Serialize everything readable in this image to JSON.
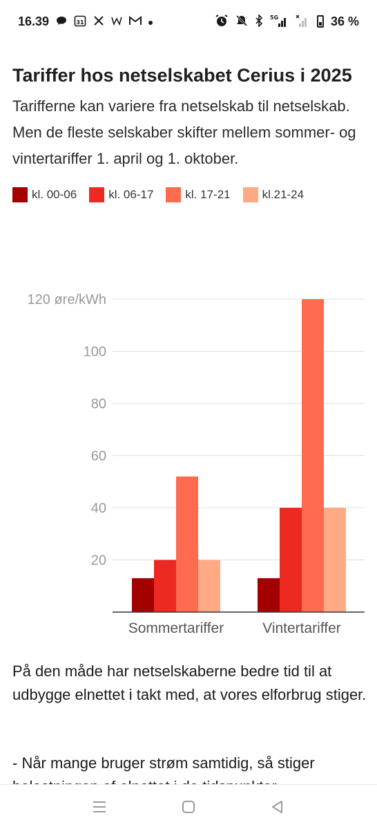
{
  "status_bar": {
    "time": "16.39",
    "left_icons": [
      "chat-bubble-icon",
      "calendar-31-icon",
      "x-logo-icon",
      "w-icon",
      "gmail-icon",
      "dot-icon"
    ],
    "right_icons": [
      "alarm-icon",
      "mute-icon",
      "bluetooth-icon",
      "5g-signal-icon",
      "signal-icon"
    ],
    "calendar_day": "31",
    "network": "5G",
    "battery": "36 %"
  },
  "article": {
    "title": "Tariffer hos netselskabet Cerius i 2025",
    "subtitle": "Tarifferne kan variere fra netselskab til netselskab. Men de fleste selskaber skifter mellem sommer- og vintertariffer 1. april og 1. oktober.",
    "paragraph1": "På den måde har netselskaberne bedre tid til at udbygge elnettet i takt med, at vores elforbrug stiger.",
    "paragraph2": "- Når mange bruger strøm samtidig, så stiger belastningen af elnettet i de tidspunkter"
  },
  "chart_data": {
    "type": "bar",
    "title": "Tariffer hos netselskabet Cerius i 2025",
    "subtitle": "Tarifferne kan variere fra netselskab til netselskab. Men de fleste selskaber skifter mellem sommer- og vintertariffer 1. april og 1. oktober.",
    "categories": [
      "Sommertariffer",
      "Vintertariffer"
    ],
    "series": [
      {
        "name": "kl. 00-06",
        "color": "#a30000",
        "values": [
          13,
          13
        ]
      },
      {
        "name": "kl. 06-17",
        "color": "#ec2a22",
        "values": [
          20,
          40
        ]
      },
      {
        "name": "kl. 17-21",
        "color": "#ff6b4f",
        "values": [
          52,
          120
        ]
      },
      {
        "name": "kl.21-24",
        "color": "#ffaa85",
        "values": [
          20,
          40
        ]
      }
    ],
    "yticks": [
      "20",
      "40",
      "60",
      "80",
      "100",
      "120 øre/kWh"
    ],
    "ytick_values": [
      20,
      40,
      60,
      80,
      100,
      120
    ],
    "ylim": [
      0,
      120
    ],
    "ylabel": "",
    "xlabel": "",
    "grid": true,
    "legend_placement": "top-left"
  },
  "nav": {
    "icons": [
      "recent-apps-icon",
      "home-icon",
      "back-icon"
    ]
  }
}
